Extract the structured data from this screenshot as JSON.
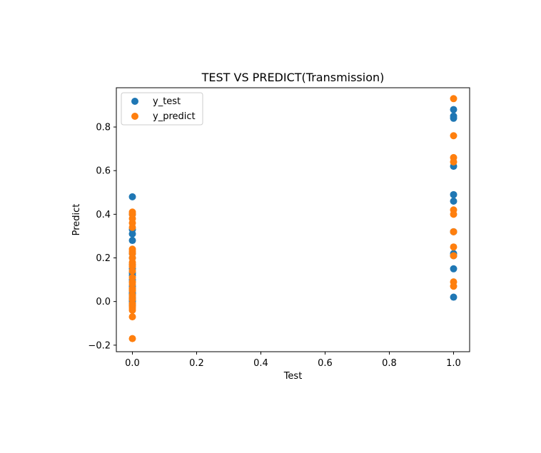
{
  "chart_data": {
    "type": "scatter",
    "title": "TEST VS PREDICT(Transmission)",
    "xlabel": "Test",
    "ylabel": "Predict",
    "xlim": [
      -0.05,
      1.05
    ],
    "ylim": [
      -0.23,
      0.98
    ],
    "xticks": [
      0.0,
      0.2,
      0.4,
      0.6,
      0.8,
      1.0
    ],
    "xtick_labels": [
      "0.0",
      "0.2",
      "0.4",
      "0.6",
      "0.8",
      "1.0"
    ],
    "yticks": [
      -0.2,
      0.0,
      0.2,
      0.4,
      0.6,
      0.8
    ],
    "ytick_labels": [
      "−0.2",
      "0.0",
      "0.2",
      "0.4",
      "0.6",
      "0.8"
    ],
    "grid": false,
    "legend_position": "top-left",
    "series": [
      {
        "name": "y_test",
        "color": "#1f77b4",
        "points": [
          [
            0,
            0.48
          ],
          [
            0,
            0.4
          ],
          [
            0,
            0.33
          ],
          [
            0,
            0.31
          ],
          [
            0,
            0.28
          ],
          [
            0,
            0.22
          ],
          [
            0,
            0.2
          ],
          [
            0,
            0.17
          ],
          [
            0,
            0.15
          ],
          [
            0,
            0.13
          ],
          [
            0,
            0.12
          ],
          [
            0,
            0.1
          ],
          [
            0,
            0.09
          ],
          [
            0,
            0.07
          ],
          [
            0,
            0.06
          ],
          [
            0,
            0.05
          ],
          [
            0,
            0.04
          ],
          [
            0,
            0.035
          ],
          [
            0,
            0.03
          ],
          [
            0,
            0.02
          ],
          [
            0,
            0.015
          ],
          [
            0,
            0.01
          ],
          [
            0,
            0.005
          ],
          [
            0,
            0.0
          ],
          [
            0,
            -0.01
          ],
          [
            0,
            -0.02
          ],
          [
            1,
            0.88
          ],
          [
            1,
            0.85
          ],
          [
            1,
            0.84
          ],
          [
            1,
            0.62
          ],
          [
            1,
            0.49
          ],
          [
            1,
            0.46
          ],
          [
            1,
            0.32
          ],
          [
            1,
            0.22
          ],
          [
            1,
            0.21
          ],
          [
            1,
            0.15
          ],
          [
            1,
            0.02
          ]
        ]
      },
      {
        "name": "y_predict",
        "color": "#ff7f0e",
        "points": [
          [
            0,
            0.41
          ],
          [
            0,
            0.4
          ],
          [
            0,
            0.38
          ],
          [
            0,
            0.36
          ],
          [
            0,
            0.34
          ],
          [
            0,
            0.24
          ],
          [
            0,
            0.23
          ],
          [
            0,
            0.22
          ],
          [
            0,
            0.2
          ],
          [
            0,
            0.18
          ],
          [
            0,
            0.17
          ],
          [
            0,
            0.16
          ],
          [
            0,
            0.14
          ],
          [
            0,
            0.11
          ],
          [
            0,
            0.09
          ],
          [
            0,
            0.08
          ],
          [
            0,
            0.06
          ],
          [
            0,
            0.05
          ],
          [
            0,
            0.03
          ],
          [
            0,
            0.02
          ],
          [
            0,
            0.01
          ],
          [
            0,
            -0.01
          ],
          [
            0,
            -0.02
          ],
          [
            0,
            -0.03
          ],
          [
            0,
            -0.04
          ],
          [
            0,
            -0.07
          ],
          [
            0,
            -0.17
          ],
          [
            1,
            0.93
          ],
          [
            1,
            0.76
          ],
          [
            1,
            0.66
          ],
          [
            1,
            0.64
          ],
          [
            1,
            0.42
          ],
          [
            1,
            0.4
          ],
          [
            1,
            0.32
          ],
          [
            1,
            0.25
          ],
          [
            1,
            0.21
          ],
          [
            1,
            0.09
          ],
          [
            1,
            0.07
          ]
        ]
      }
    ]
  }
}
